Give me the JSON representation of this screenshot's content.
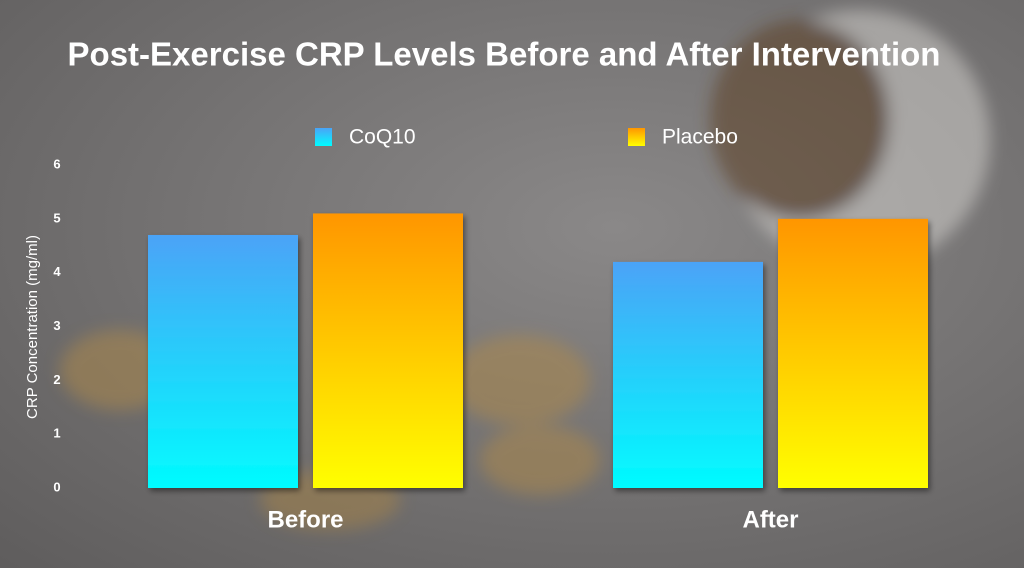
{
  "chart_data": {
    "type": "bar",
    "title": "Post-Exercise CRP Levels Before and After Intervention",
    "y_label": "CRP Concentration (mg/ml)",
    "categories": [
      "Before",
      "After"
    ],
    "series": [
      {
        "name": "CoQ10",
        "color": [
          "#4ba3f7",
          "#00fcff"
        ],
        "values": [
          4.7,
          4.2
        ]
      },
      {
        "name": "Placebo",
        "color": [
          "#ff9600",
          "#ffff00"
        ],
        "values": [
          5.1,
          5.0
        ]
      }
    ],
    "ylim": [
      0,
      6
    ],
    "yticks": [
      0,
      1,
      2,
      3,
      4,
      5,
      6
    ],
    "grid": false,
    "legend": "top"
  }
}
